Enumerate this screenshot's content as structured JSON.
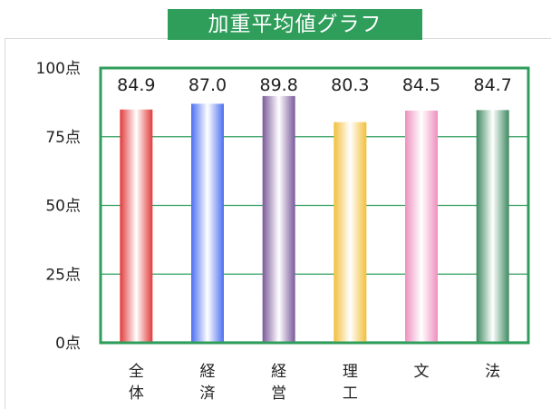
{
  "chart_data": {
    "type": "bar",
    "title": "加重平均値グラフ",
    "xlabel": "",
    "ylabel": "",
    "categories": [
      [
        "全",
        "体"
      ],
      [
        "経",
        "済"
      ],
      [
        "経",
        "営"
      ],
      [
        "理",
        "工"
      ],
      [
        "文"
      ],
      [
        "法"
      ]
    ],
    "values": [
      84.9,
      87.0,
      89.8,
      80.3,
      84.5,
      84.7
    ],
    "value_labels": [
      "84.9",
      "87.0",
      "89.8",
      "80.3",
      "84.5",
      "84.7"
    ],
    "yticks": [
      0,
      25,
      50,
      75,
      100
    ],
    "ytick_labels": [
      "0点",
      "25点",
      "50点",
      "75点",
      "100点"
    ],
    "ylim": [
      0,
      100
    ],
    "grid": true,
    "legend": "none",
    "colors": {
      "frame": "#2f9e5b",
      "grid": "#2f9e5b",
      "bars": [
        "#e23b3b",
        "#4d6ff0",
        "#7a5a9a",
        "#f2bf3a",
        "#ef8fbf",
        "#3e8a60"
      ]
    }
  }
}
